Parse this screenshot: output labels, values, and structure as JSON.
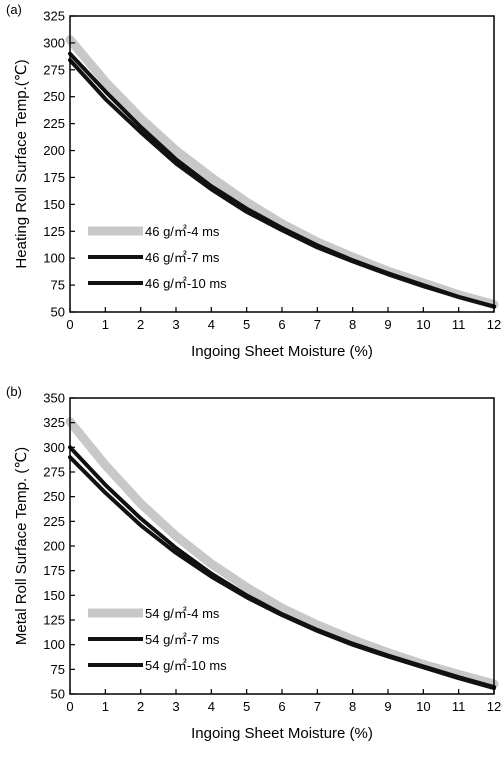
{
  "chart_data": [
    {
      "panel_label": "(a)",
      "type": "line",
      "xlabel": "Ingoing Sheet Moisture (%)",
      "ylabel": "Heating Roll Surface Temp.(℃)",
      "xlim": [
        0,
        12
      ],
      "ylim": [
        50,
        325
      ],
      "xticks": [
        "0",
        "1",
        "2",
        "3",
        "4",
        "5",
        "6",
        "7",
        "8",
        "9",
        "10",
        "11",
        "12"
      ],
      "yticks": [
        "50",
        "75",
        "100",
        "125",
        "150",
        "175",
        "200",
        "225",
        "250",
        "275",
        "300",
        "325"
      ],
      "grid": false,
      "legend_position": "lower-left",
      "series": [
        {
          "name": "46 g/㎡-4 ms",
          "color": "#c8c8c8",
          "x": [
            0,
            1,
            2,
            3,
            4,
            5,
            6,
            7,
            8,
            9,
            10,
            11,
            12
          ],
          "y": [
            303,
            264,
            230,
            200,
            175,
            152,
            132,
            115,
            101,
            88,
            77,
            66,
            57
          ]
        },
        {
          "name": "46 g/㎡-7 ms",
          "color": "#111111",
          "x": [
            0,
            1,
            2,
            3,
            4,
            5,
            6,
            7,
            8,
            9,
            10,
            11,
            12
          ],
          "y": [
            290,
            255,
            222,
            192,
            167,
            146,
            128,
            112,
            98,
            86,
            75,
            64,
            55
          ]
        },
        {
          "name": "46 g/㎡-10 ms",
          "color": "#111111",
          "x": [
            0,
            1,
            2,
            3,
            4,
            5,
            6,
            7,
            8,
            9,
            10,
            11,
            12
          ],
          "y": [
            284,
            248,
            217,
            188,
            164,
            143,
            126,
            110,
            97,
            85,
            74,
            64,
            55
          ]
        }
      ]
    },
    {
      "panel_label": "(b)",
      "type": "line",
      "xlabel": "Ingoing Sheet Moisture (%)",
      "ylabel": "Metal Roll Surface Temp. (℃)",
      "xlim": [
        0,
        12
      ],
      "ylim": [
        50,
        350
      ],
      "xticks": [
        "0",
        "1",
        "2",
        "3",
        "4",
        "5",
        "6",
        "7",
        "8",
        "9",
        "10",
        "11",
        "12"
      ],
      "yticks": [
        "50",
        "75",
        "100",
        "125",
        "150",
        "175",
        "200",
        "225",
        "250",
        "275",
        "300",
        "325",
        "350"
      ],
      "grid": false,
      "legend_position": "lower-left",
      "series": [
        {
          "name": "54 g/㎡-4 ms",
          "color": "#c8c8c8",
          "x": [
            0,
            1,
            2,
            3,
            4,
            5,
            6,
            7,
            8,
            9,
            10,
            11,
            12
          ],
          "y": [
            326,
            282,
            243,
            210,
            182,
            158,
            137,
            120,
            105,
            92,
            80,
            70,
            60
          ]
        },
        {
          "name": "54 g/㎡-7 ms",
          "color": "#111111",
          "x": [
            0,
            1,
            2,
            3,
            4,
            5,
            6,
            7,
            8,
            9,
            10,
            11,
            12
          ],
          "y": [
            300,
            262,
            228,
            198,
            172,
            150,
            131,
            115,
            101,
            89,
            78,
            67,
            57
          ]
        },
        {
          "name": "54 g/㎡-10 ms",
          "color": "#111111",
          "x": [
            0,
            1,
            2,
            3,
            4,
            5,
            6,
            7,
            8,
            9,
            10,
            11,
            12
          ],
          "y": [
            290,
            254,
            221,
            193,
            169,
            148,
            130,
            114,
            100,
            88,
            77,
            66,
            56
          ]
        }
      ]
    }
  ]
}
